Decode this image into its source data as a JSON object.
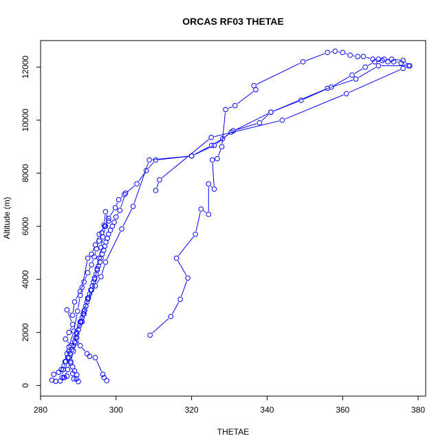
{
  "chart_data": {
    "type": "line",
    "title": "ORCAS RF03 THETAE",
    "xlabel": "THETAE",
    "ylabel": "Altitude (m)",
    "xlim": [
      280,
      382
    ],
    "ylim": [
      -400,
      13000
    ],
    "xticks": [
      280,
      300,
      320,
      340,
      360,
      380
    ],
    "yticks": [
      0,
      2000,
      4000,
      6000,
      8000,
      10000,
      12000
    ],
    "grid": false,
    "marker": "open-circle",
    "line_style": "line+points",
    "color": "#0000ff",
    "series": [
      {
        "points": [
          [
            297.5,
            180
          ],
          [
            296.8,
            300
          ],
          [
            296.5,
            420
          ],
          [
            294.5,
            1050
          ],
          [
            293.0,
            1100
          ],
          [
            292.3,
            1200
          ],
          [
            290.5,
            1500
          ],
          [
            289.6,
            1800
          ],
          [
            290.0,
            2100
          ],
          [
            291.0,
            2400
          ],
          [
            291.5,
            2700
          ],
          [
            292.0,
            3000
          ],
          [
            292.5,
            3300
          ],
          [
            293.5,
            3600
          ],
          [
            294.3,
            4000
          ],
          [
            295.0,
            4400
          ],
          [
            295.5,
            4800
          ],
          [
            296.0,
            5200
          ],
          [
            296.5,
            5600
          ],
          [
            297.2,
            6000
          ],
          [
            298.0,
            6300
          ],
          [
            299.8,
            6700
          ],
          [
            300.7,
            7000
          ],
          [
            302.2,
            7200
          ],
          [
            305.5,
            7600
          ],
          [
            308.0,
            8100
          ],
          [
            310.5,
            8500
          ],
          [
            320.0,
            8650
          ],
          [
            325.3,
            9050
          ],
          [
            328.2,
            9300
          ],
          [
            331.0,
            9600
          ],
          [
            338.0,
            9900
          ],
          [
            341.0,
            10300
          ],
          [
            349.0,
            10750
          ],
          [
            357.0,
            11250
          ],
          [
            362.5,
            11700
          ],
          [
            366.0,
            12000
          ],
          [
            368.5,
            12200
          ],
          [
            371.0,
            12300
          ],
          [
            373.0,
            12300
          ],
          [
            376.0,
            12250
          ],
          [
            377.8,
            12050
          ],
          [
            376.0,
            11950
          ],
          [
            361.0,
            11000
          ],
          [
            344.0,
            10000
          ],
          [
            325.2,
            9350
          ],
          [
            311.5,
            7750
          ],
          [
            310.5,
            7350
          ]
        ]
      },
      {
        "points": [
          [
            309.0,
            1900
          ],
          [
            314.5,
            2600
          ],
          [
            317.0,
            3250
          ],
          [
            319.0,
            4050
          ],
          [
            316.0,
            4800
          ],
          [
            321.0,
            5700
          ],
          [
            322.5,
            6650
          ],
          [
            324.5,
            6450
          ],
          [
            324.5,
            7600
          ],
          [
            326.0,
            7400
          ],
          [
            325.5,
            8500
          ],
          [
            326.8,
            8550
          ],
          [
            328.0,
            9000
          ],
          [
            329.0,
            10400
          ],
          [
            331.5,
            10550
          ],
          [
            337.0,
            11150
          ],
          [
            336.5,
            11300
          ],
          [
            349.5,
            12200
          ],
          [
            356.0,
            12550
          ],
          [
            358.0,
            12600
          ],
          [
            360.0,
            12550
          ],
          [
            362.0,
            12450
          ],
          [
            364.0,
            12400
          ],
          [
            365.5,
            12400
          ],
          [
            368.0,
            12300
          ],
          [
            369.5,
            12300
          ],
          [
            370.5,
            12250
          ],
          [
            372.0,
            12200
          ],
          [
            373.5,
            12200
          ],
          [
            375.5,
            12150
          ],
          [
            377.5,
            12050
          ],
          [
            369.5,
            12050
          ],
          [
            363.5,
            11550
          ],
          [
            356.0,
            11200
          ],
          [
            341.0,
            10300
          ],
          [
            330.5,
            9550
          ],
          [
            326.0,
            9050
          ],
          [
            320.0,
            8650
          ],
          [
            308.8,
            8500
          ],
          [
            304.5,
            6750
          ],
          [
            301.5,
            5900
          ],
          [
            297.2,
            4650
          ],
          [
            296.0,
            4100
          ],
          [
            294.5,
            3750
          ],
          [
            292.5,
            3250
          ],
          [
            291.5,
            2800
          ],
          [
            290.5,
            2400
          ],
          [
            289.5,
            2000
          ],
          [
            289.2,
            1600
          ],
          [
            288.7,
            1300
          ],
          [
            288.0,
            900
          ],
          [
            287.2,
            600
          ],
          [
            286.3,
            300
          ],
          [
            285.2,
            170
          ],
          [
            284.0,
            160
          ],
          [
            283.0,
            200
          ],
          [
            283.5,
            420
          ],
          [
            284.8,
            500
          ],
          [
            285.5,
            600
          ],
          [
            286.2,
            750
          ],
          [
            286.7,
            900
          ],
          [
            287.2,
            1050
          ],
          [
            287.8,
            1200
          ],
          [
            288.3,
            1350
          ],
          [
            288.7,
            1500
          ],
          [
            289.0,
            1650
          ],
          [
            289.3,
            1800
          ],
          [
            289.6,
            1950
          ],
          [
            290.0,
            2100
          ],
          [
            290.3,
            2250
          ],
          [
            290.7,
            2400
          ],
          [
            291.0,
            2550
          ],
          [
            291.3,
            2700
          ],
          [
            291.7,
            2850
          ],
          [
            292.0,
            3000
          ],
          [
            292.3,
            3150
          ],
          [
            292.7,
            3300
          ],
          [
            293.0,
            3450
          ],
          [
            293.3,
            3600
          ],
          [
            293.7,
            3750
          ],
          [
            294.0,
            3900
          ],
          [
            294.3,
            4050
          ],
          [
            294.7,
            4200
          ],
          [
            295.0,
            4350
          ],
          [
            295.3,
            4500
          ],
          [
            295.7,
            4650
          ],
          [
            296.0,
            4800
          ],
          [
            296.3,
            4950
          ],
          [
            296.7,
            5100
          ],
          [
            297.0,
            5250
          ],
          [
            297.3,
            5400
          ],
          [
            297.7,
            5550
          ],
          [
            298.0,
            5700
          ],
          [
            298.5,
            5850
          ],
          [
            299.0,
            6000
          ],
          [
            299.5,
            6150
          ],
          [
            300.0,
            6350
          ],
          [
            301.0,
            6600
          ],
          [
            302.5,
            7250
          ]
        ]
      },
      {
        "points": [
          [
            290.0,
            150
          ],
          [
            289.5,
            250
          ],
          [
            289.6,
            400
          ],
          [
            289.0,
            550
          ],
          [
            288.5,
            700
          ],
          [
            288.0,
            850
          ],
          [
            287.5,
            1050
          ],
          [
            287.5,
            1300
          ],
          [
            288.0,
            1500
          ],
          [
            286.6,
            1750
          ],
          [
            287.5,
            2000
          ],
          [
            288.5,
            2300
          ],
          [
            287.0,
            2850
          ],
          [
            288.5,
            2650
          ],
          [
            289.0,
            3150
          ],
          [
            290.5,
            3550
          ],
          [
            291.5,
            3900
          ],
          [
            292.5,
            4250
          ],
          [
            293.5,
            4550
          ],
          [
            294.2,
            4850
          ],
          [
            294.8,
            5150
          ],
          [
            295.5,
            5450
          ],
          [
            296.2,
            5750
          ],
          [
            296.8,
            6050
          ],
          [
            297.2,
            6550
          ],
          [
            298.0,
            6200
          ],
          [
            297.0,
            6000
          ],
          [
            295.5,
            5700
          ],
          [
            294.5,
            5300
          ],
          [
            293.5,
            4950
          ],
          [
            292.5,
            4800
          ],
          [
            291.0,
            3700
          ],
          [
            290.5,
            3400
          ],
          [
            289.8,
            2800
          ],
          [
            288.8,
            2050
          ],
          [
            287.5,
            1450
          ],
          [
            287.0,
            1200
          ],
          [
            286.5,
            900
          ],
          [
            286.0,
            600
          ],
          [
            285.7,
            300
          ],
          [
            286.2,
            300
          ],
          [
            287.0,
            350
          ],
          [
            288.5,
            450
          ],
          [
            288.8,
            250
          ]
        ]
      }
    ]
  }
}
